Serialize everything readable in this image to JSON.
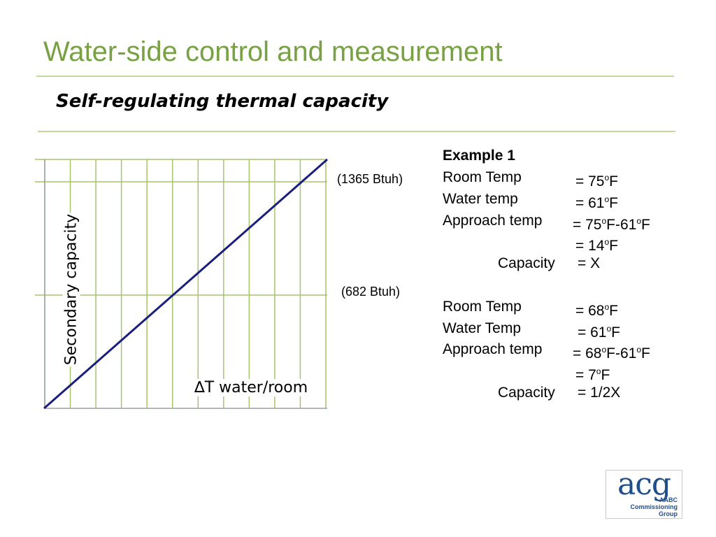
{
  "slide": {
    "title": "Water-side control and measurement",
    "subtitle": "Self-regulating thermal capacity"
  },
  "chart_data": {
    "type": "line",
    "xlabel": "∆T water/room",
    "ylabel": "Secondary capacity",
    "annotations": [
      "(1365 Btuh)",
      "(682 Btuh)"
    ],
    "series": [
      {
        "x": [
          0,
          1
        ],
        "y": [
          0,
          1
        ]
      }
    ],
    "grid": true
  },
  "examples": {
    "heading": "Example 1",
    "ex1": {
      "room_label": "Room Temp",
      "room_eq": "= 75",
      "room_unit": "F",
      "water_label": "Water temp",
      "water_eq": "= 61",
      "water_unit": "F",
      "approach_label": "Approach temp",
      "approach_eq": "= 75",
      "approach_mid": "F-61",
      "approach_unit": "F",
      "approach_result": "= 14",
      "approach_result_unit": "F",
      "capacity_label": "Capacity",
      "capacity_value": "= X"
    },
    "ex2": {
      "room_label": "Room Temp",
      "room_eq": "= 68",
      "room_unit": "F",
      "water_label": "Water Temp",
      "water_eq": "= 61",
      "water_unit": "F",
      "approach_label": "Approach temp",
      "approach_eq": "= 68",
      "approach_mid": "F-61",
      "approach_unit": "F",
      "approach_result": "= 7",
      "approach_result_unit": "F",
      "capacity_label": "Capacity",
      "capacity_value": "= 1/2X"
    },
    "degree_symbol": "o"
  },
  "logo": {
    "wordmark": "acg",
    "line1": "AABC",
    "line2": "Commissioning",
    "line3": "Group"
  },
  "colors": {
    "title": "#77a142",
    "rule": "#c3d69b",
    "grid": "#a6c46c",
    "line": "#1a1f7e",
    "logo": "#1f4e8c"
  }
}
